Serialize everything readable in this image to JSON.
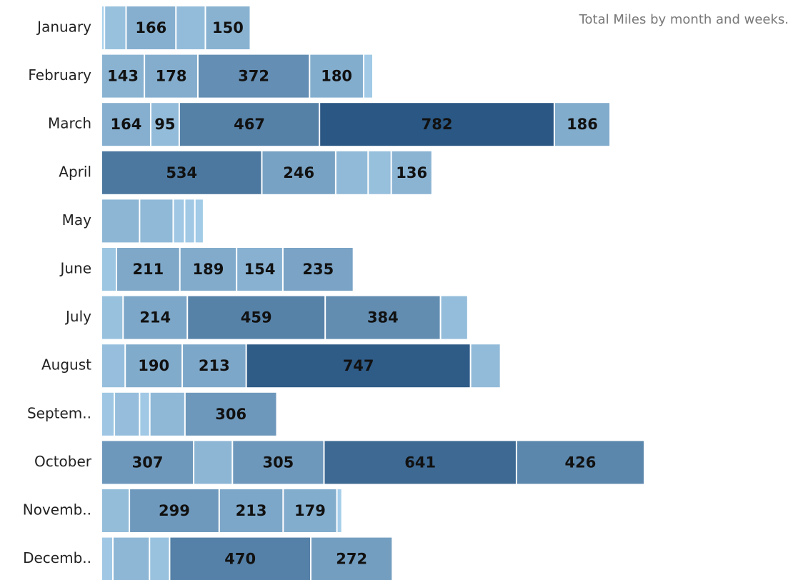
{
  "chart_data": {
    "type": "stacked_bar",
    "title": "Total Miles by month and weeks.",
    "categories": [
      "January",
      "February",
      "March",
      "April",
      "May",
      "June",
      "July",
      "August",
      "Septem..",
      "October",
      "Novemb..",
      "Decemb.."
    ],
    "values": [
      [
        10,
        72,
        166,
        98,
        150
      ],
      [
        143,
        178,
        372,
        180,
        31
      ],
      [
        164,
        95,
        467,
        782,
        186
      ],
      [
        534,
        246,
        108,
        77,
        136
      ],
      [
        127,
        112,
        38,
        34,
        29
      ],
      [
        50,
        211,
        189,
        154,
        235
      ],
      [
        72,
        214,
        459,
        384,
        91
      ],
      [
        79,
        190,
        213,
        747,
        100
      ],
      [
        43,
        84,
        34,
        117,
        306
      ],
      [
        307,
        129,
        305,
        641,
        426
      ],
      [
        93,
        299,
        213,
        179,
        17
      ],
      [
        38,
        122,
        67,
        470,
        272
      ]
    ],
    "show_labels": [
      [
        false,
        false,
        true,
        false,
        true
      ],
      [
        true,
        true,
        true,
        true,
        false
      ],
      [
        true,
        true,
        true,
        true,
        true
      ],
      [
        true,
        true,
        false,
        false,
        true
      ],
      [
        false,
        false,
        false,
        false,
        false
      ],
      [
        false,
        true,
        true,
        true,
        true
      ],
      [
        false,
        true,
        true,
        true,
        false
      ],
      [
        false,
        true,
        true,
        true,
        false
      ],
      [
        false,
        false,
        false,
        false,
        true
      ],
      [
        true,
        false,
        true,
        true,
        true
      ],
      [
        false,
        true,
        true,
        true,
        false
      ],
      [
        false,
        false,
        false,
        true,
        true
      ]
    ],
    "color_range": [
      "#a9d1ec",
      "#2a5783"
    ]
  }
}
